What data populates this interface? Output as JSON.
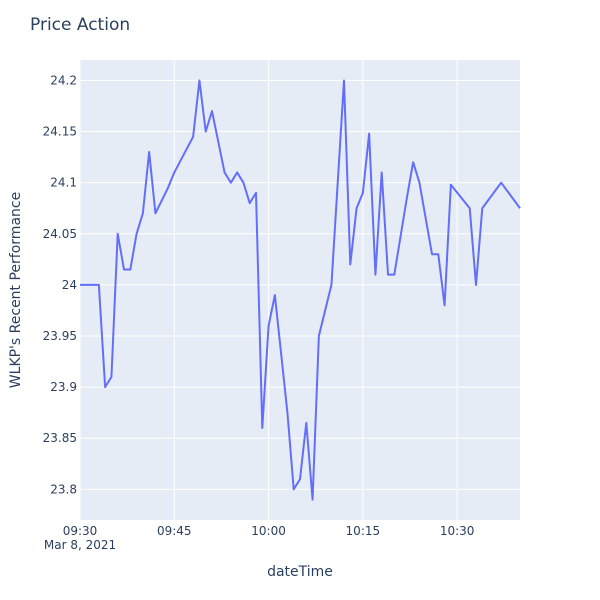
{
  "chart_data": {
    "type": "line",
    "title": "Price Action",
    "xlabel": "dateTime",
    "ylabel": "WLKP's Recent Performance",
    "x_ticks": [
      "09:30",
      "09:45",
      "10:00",
      "10:15",
      "10:30"
    ],
    "x_date_label": "Mar 8, 2021",
    "y_ticks": [
      "23.8",
      "23.85",
      "23.9",
      "23.95",
      "24",
      "24.05",
      "24.1",
      "24.15",
      "24.2"
    ],
    "xlim": [
      "09:30",
      "10:40"
    ],
    "ylim": [
      23.77,
      24.22
    ],
    "grid": true,
    "series": [
      {
        "color": "#636efa",
        "x": [
          "09:30",
          "09:33",
          "09:34",
          "09:35",
          "09:36",
          "09:37",
          "09:38",
          "09:39",
          "09:40",
          "09:41",
          "09:42",
          "09:44",
          "09:45",
          "09:48",
          "09:49",
          "09:50",
          "09:51",
          "09:53",
          "09:54",
          "09:55",
          "09:56",
          "09:57",
          "09:58",
          "09:59",
          "10:00",
          "10:01",
          "10:03",
          "10:04",
          "10:05",
          "10:06",
          "10:07",
          "10:08",
          "10:10",
          "10:12",
          "10:13",
          "10:14",
          "10:15",
          "10:16",
          "10:17",
          "10:18",
          "10:19",
          "10:20",
          "10:22",
          "10:23",
          "10:24",
          "10:26",
          "10:27",
          "10:28",
          "10:29",
          "10:32",
          "10:33",
          "10:34",
          "10:37",
          "10:40"
        ],
        "y": [
          24.0,
          24.0,
          23.9,
          23.91,
          24.05,
          24.015,
          24.015,
          24.05,
          24.07,
          24.13,
          24.07,
          24.095,
          24.11,
          24.145,
          24.2,
          24.15,
          24.17,
          24.11,
          24.1,
          24.11,
          24.1,
          24.08,
          24.09,
          23.86,
          23.96,
          23.99,
          23.875,
          23.8,
          23.81,
          23.865,
          23.79,
          23.95,
          24.0,
          24.2,
          24.02,
          24.075,
          24.09,
          24.148,
          24.01,
          24.11,
          24.01,
          24.01,
          24.085,
          24.12,
          24.1,
          24.03,
          24.03,
          23.98,
          24.098,
          24.075,
          24.0,
          24.075,
          24.1,
          24.075
        ]
      }
    ]
  }
}
